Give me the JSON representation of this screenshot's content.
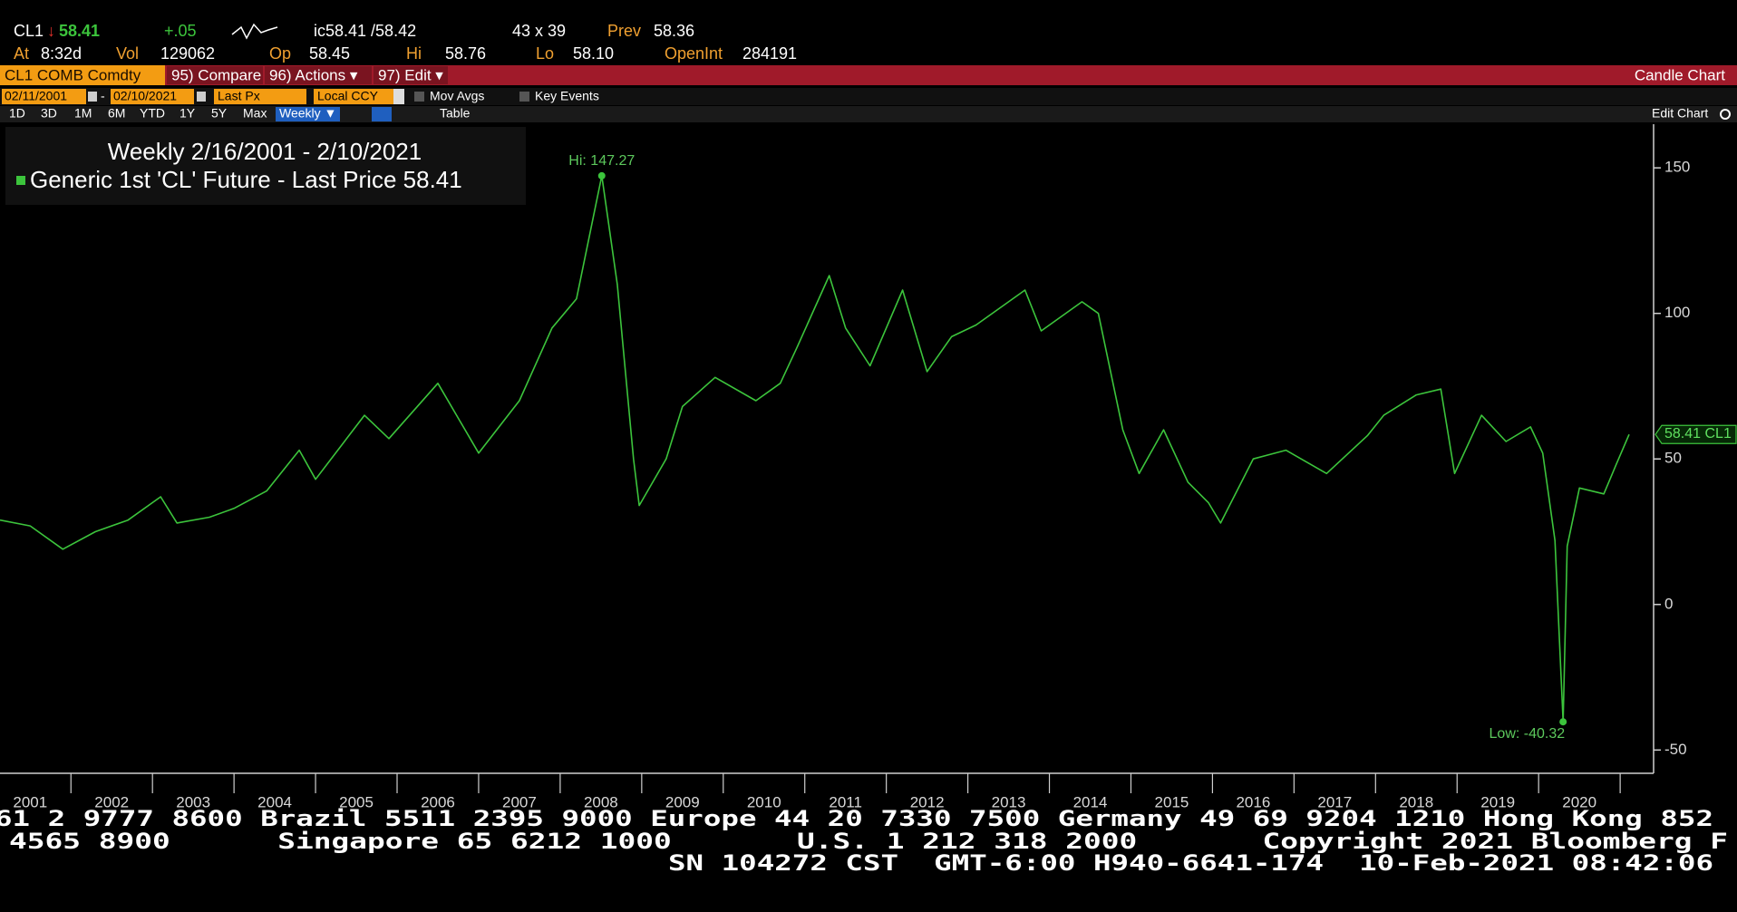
{
  "terminal": {
    "quote": {
      "ticker": "CL1",
      "arrow": "↓",
      "last": "58.41",
      "change": "+.05",
      "bid_ask": "ic58.41 /58.42",
      "size": "43 x 39",
      "prev_label": "Prev",
      "prev": "58.36"
    },
    "stats": [
      {
        "label": "At",
        "value": "8:32d"
      },
      {
        "label": "Vol",
        "value": "129062"
      },
      {
        "label": "Op",
        "value": "58.45"
      },
      {
        "label": "Hi",
        "value": "58.76"
      },
      {
        "label": "Lo",
        "value": "58.10"
      },
      {
        "label": "OpenInt",
        "value": "284191"
      }
    ],
    "menu": {
      "security": "CL1 COMB Comdty",
      "items": [
        "95) Compare",
        "96) Actions ▾",
        "97) Edit ▾"
      ],
      "view": "Candle Chart"
    },
    "settings": {
      "start": "02/11/2001",
      "sep": "-",
      "end": "02/10/2021",
      "field": "Last Px",
      "currency": "Local CCY",
      "mov_avgs": "Mov Avgs",
      "key_events": "Key Events"
    },
    "ranges": [
      "1D",
      "3D",
      "1M",
      "6M",
      "YTD",
      "1Y",
      "5Y",
      "Max"
    ],
    "frequency": "Weekly ▼",
    "table": "Table",
    "edit_chart": "Edit Chart",
    "footer": [
      "61 2 9777 8600 Brazil 5511 2395 9000 Europe 44 20 7330 7500 Germany 49 69 9204 1210 Hong Kong 852",
      "4565 8900      Singapore 65 6212 1000       U.S. 1 212 318 2000       Copyright 2021 Bloomberg F",
      "SN 104272 CST  GMT-6:00 H940-6641-174  10-Feb-2021 08:42:06"
    ]
  },
  "chart_data": {
    "type": "line",
    "title": "Weekly 2/16/2001 - 2/10/2021",
    "x": [
      2001.13,
      2001.5,
      2001.9,
      2002.3,
      2002.7,
      2003.1,
      2003.3,
      2003.7,
      2004.0,
      2004.4,
      2004.8,
      2005.0,
      2005.6,
      2005.9,
      2006.5,
      2007.0,
      2007.5,
      2007.9,
      2008.2,
      2008.51,
      2008.7,
      2008.9,
      2008.97,
      2009.3,
      2009.5,
      2009.9,
      2010.4,
      2010.7,
      2010.9,
      2011.3,
      2011.5,
      2011.8,
      2012.2,
      2012.5,
      2012.8,
      2013.1,
      2013.7,
      2013.9,
      2014.4,
      2014.6,
      2014.9,
      2015.1,
      2015.4,
      2015.7,
      2015.95,
      2016.1,
      2016.5,
      2016.9,
      2017.4,
      2017.9,
      2018.1,
      2018.5,
      2018.8,
      2018.97,
      2019.3,
      2019.6,
      2019.9,
      2020.05,
      2020.2,
      2020.3,
      2020.35,
      2020.5,
      2020.8,
      2020.95,
      2021.11
    ],
    "series": [
      {
        "name": "Generic 1st 'CL' Future - Last Price",
        "color": "#3cc43c",
        "values": [
          29,
          27,
          19,
          25,
          29,
          37,
          28,
          30,
          33,
          39,
          53,
          43,
          65,
          57,
          76,
          52,
          70,
          95,
          105,
          147.27,
          110,
          50,
          34,
          50,
          68,
          78,
          70,
          76,
          88,
          113,
          95,
          82,
          108,
          80,
          92,
          96,
          108,
          94,
          104,
          100,
          60,
          45,
          60,
          42,
          35,
          28,
          50,
          53,
          45,
          58,
          65,
          72,
          74,
          45,
          65,
          56,
          61,
          52,
          22,
          -40.32,
          20,
          40,
          38,
          48,
          58.41
        ]
      }
    ],
    "annotations": [
      {
        "label": "Hi:",
        "x": 2008.51,
        "value": 147.27
      },
      {
        "label": "Low:",
        "x": 2020.3,
        "value": -40.32
      }
    ],
    "xlim": [
      2001.13,
      2021.41
    ],
    "xticks": [
      {
        "value": 2001.5,
        "label": "2001"
      },
      {
        "value": 2002.5,
        "label": "2002"
      },
      {
        "value": 2003.5,
        "label": "2003"
      },
      {
        "value": 2004.5,
        "label": "2004"
      },
      {
        "value": 2005.5,
        "label": "2005"
      },
      {
        "value": 2006.5,
        "label": "2006"
      },
      {
        "value": 2007.5,
        "label": "2007"
      },
      {
        "value": 2008.5,
        "label": "2008"
      },
      {
        "value": 2009.5,
        "label": "2009"
      },
      {
        "value": 2010.5,
        "label": "2010"
      },
      {
        "value": 2011.5,
        "label": "2011"
      },
      {
        "value": 2012.5,
        "label": "2012"
      },
      {
        "value": 2013.5,
        "label": "2013"
      },
      {
        "value": 2014.5,
        "label": "2014"
      },
      {
        "value": 2015.5,
        "label": "2015"
      },
      {
        "value": 2016.5,
        "label": "2016"
      },
      {
        "value": 2017.5,
        "label": "2017"
      },
      {
        "value": 2018.5,
        "label": "2018"
      },
      {
        "value": 2019.5,
        "label": "2019"
      },
      {
        "value": 2020.5,
        "label": "2020"
      }
    ],
    "year_boundaries": [
      2002,
      2003,
      2004,
      2005,
      2006,
      2007,
      2008,
      2009,
      2010,
      2011,
      2012,
      2013,
      2014,
      2015,
      2016,
      2017,
      2018,
      2019,
      2020,
      2021
    ],
    "ylim": [
      -58,
      165
    ],
    "yticks": [
      -50,
      0,
      50,
      100,
      150
    ],
    "grid": false
  }
}
